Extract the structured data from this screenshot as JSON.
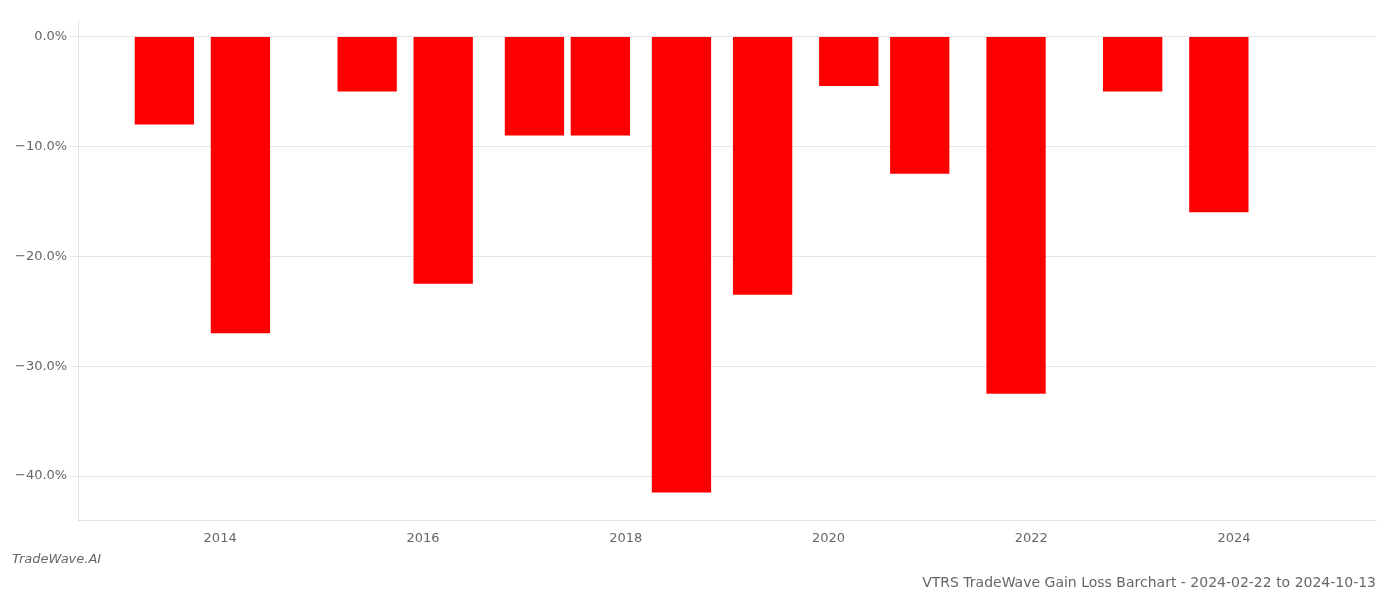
{
  "chart_data": {
    "type": "bar",
    "title": "VTRS TradeWave Gain Loss Barchart - 2024-02-22 to 2024-10-13",
    "subtitle": "TradeWave.AI",
    "x": [
      2013.45,
      2014.2,
      2015.45,
      2016.2,
      2017.1,
      2017.75,
      2018.55,
      2019.35,
      2020.2,
      2020.9,
      2021.85,
      2023.0,
      2023.85
    ],
    "values": [
      -8.0,
      -27.0,
      -5.0,
      -22.5,
      -9.0,
      -9.0,
      -41.5,
      -23.5,
      -4.5,
      -12.5,
      -32.5,
      -5.0,
      -16.0
    ],
    "color": "#ff0000",
    "xlim": [
      2012.6,
      2025.4
    ],
    "xticks": [
      2014,
      2016,
      2018,
      2020,
      2022,
      2024
    ],
    "ylim": [
      -44,
      1.5
    ],
    "yticks": [
      {
        "value": 0.0,
        "label": "0.0%"
      },
      {
        "value": -10.0,
        "label": "−10.0%"
      },
      {
        "value": -20.0,
        "label": "−20.0%"
      },
      {
        "value": -30.0,
        "label": "−30.0%"
      },
      {
        "value": -40.0,
        "label": "−40.0%"
      }
    ],
    "grid": true
  }
}
